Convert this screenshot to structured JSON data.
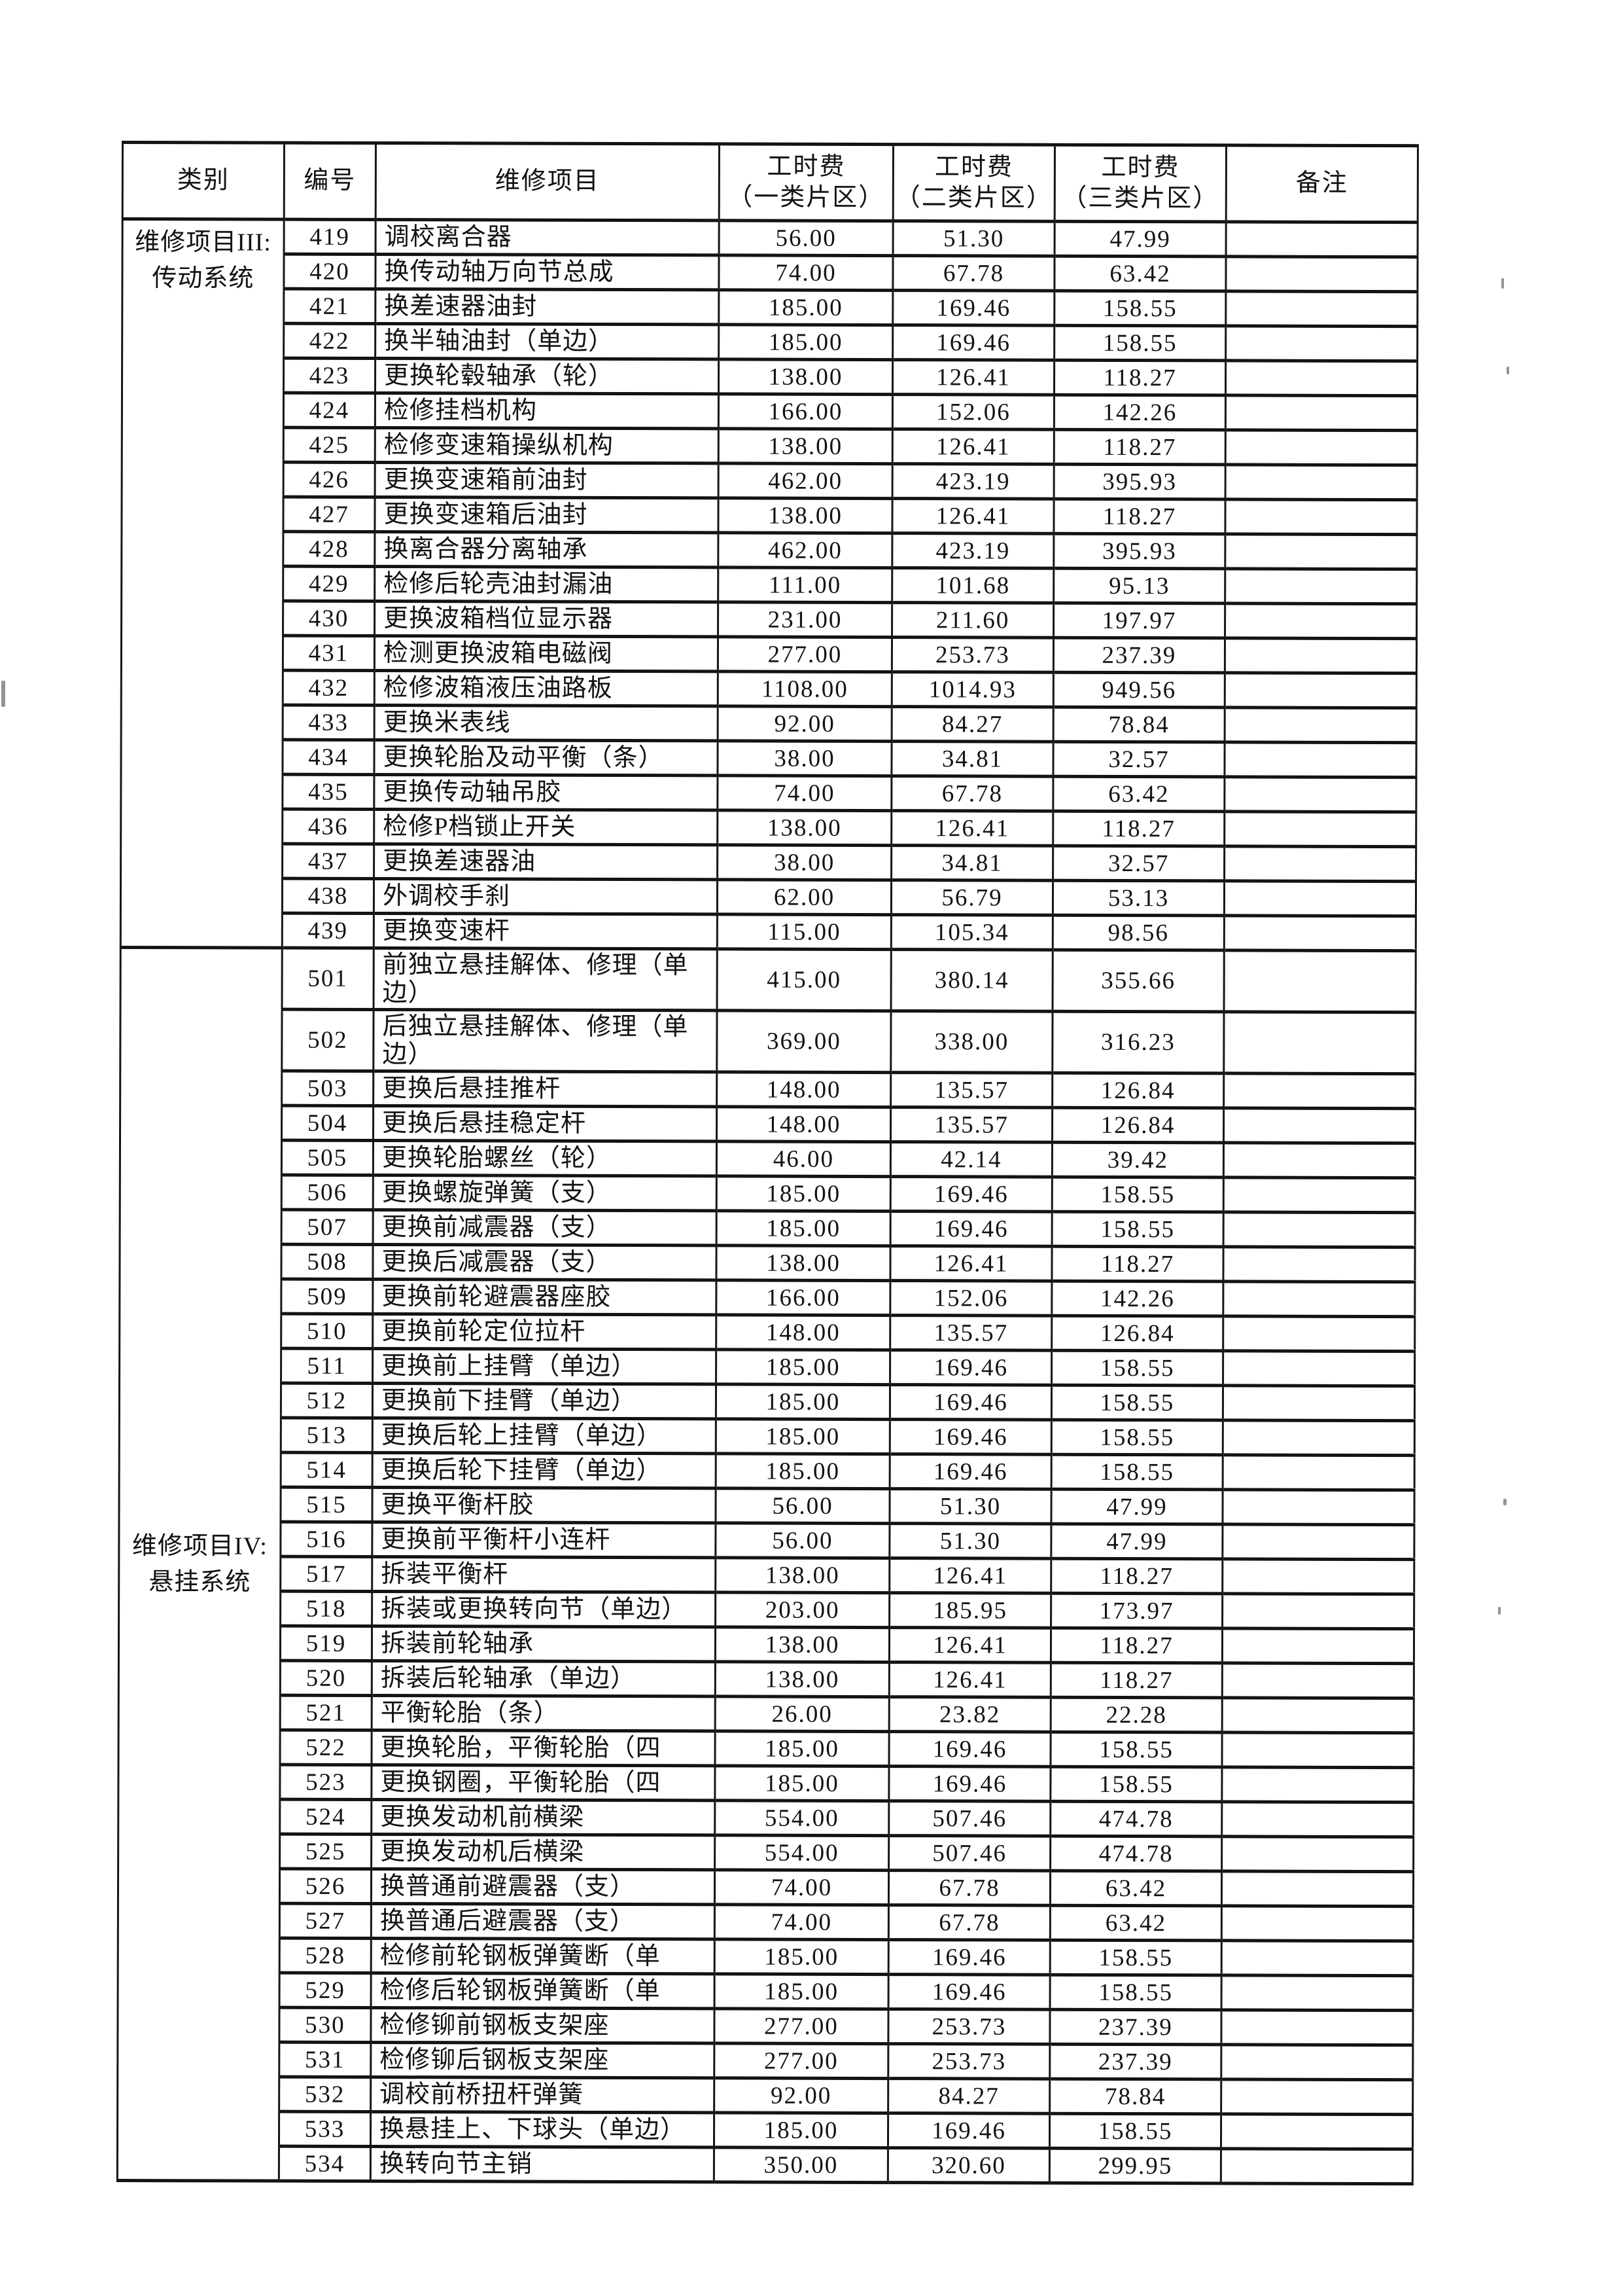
{
  "table": {
    "header": {
      "category": "类别",
      "number": "编号",
      "item": "维修项目",
      "fee1_line1": "工时费",
      "fee1_line2": "（一类片区）",
      "fee2_line1": "工时费",
      "fee2_line2": "（二类片区）",
      "fee3_line1": "工时费",
      "fee3_line2": "（三类片区）",
      "remark": "备注"
    },
    "ink_color": "#121212",
    "paper_color": "#ffffff",
    "groups": [
      {
        "category_lines": [
          "维修项目III:",
          "传动系统"
        ],
        "category_valign": "top",
        "rows": [
          {
            "no": "419",
            "item": "调校离合器",
            "fee1": "56.00",
            "fee2": "51.30",
            "fee3": "47.99"
          },
          {
            "no": "420",
            "item": "换传动轴万向节总成",
            "fee1": "74.00",
            "fee2": "67.78",
            "fee3": "63.42"
          },
          {
            "no": "421",
            "item": "换差速器油封",
            "fee1": "185.00",
            "fee2": "169.46",
            "fee3": "158.55"
          },
          {
            "no": "422",
            "item": "换半轴油封（单边）",
            "fee1": "185.00",
            "fee2": "169.46",
            "fee3": "158.55"
          },
          {
            "no": "423",
            "item": "更换轮毂轴承（轮）",
            "fee1": "138.00",
            "fee2": "126.41",
            "fee3": "118.27"
          },
          {
            "no": "424",
            "item": "检修挂档机构",
            "fee1": "166.00",
            "fee2": "152.06",
            "fee3": "142.26"
          },
          {
            "no": "425",
            "item": "检修变速箱操纵机构",
            "fee1": "138.00",
            "fee2": "126.41",
            "fee3": "118.27"
          },
          {
            "no": "426",
            "item": "更换变速箱前油封",
            "fee1": "462.00",
            "fee2": "423.19",
            "fee3": "395.93"
          },
          {
            "no": "427",
            "item": "更换变速箱后油封",
            "fee1": "138.00",
            "fee2": "126.41",
            "fee3": "118.27"
          },
          {
            "no": "428",
            "item": "换离合器分离轴承",
            "fee1": "462.00",
            "fee2": "423.19",
            "fee3": "395.93"
          },
          {
            "no": "429",
            "item": "检修后轮壳油封漏油",
            "fee1": "111.00",
            "fee2": "101.68",
            "fee3": "95.13"
          },
          {
            "no": "430",
            "item": "更换波箱档位显示器",
            "fee1": "231.00",
            "fee2": "211.60",
            "fee3": "197.97"
          },
          {
            "no": "431",
            "item": "检测更换波箱电磁阀",
            "fee1": "277.00",
            "fee2": "253.73",
            "fee3": "237.39"
          },
          {
            "no": "432",
            "item": "检修波箱液压油路板",
            "fee1": "1108.00",
            "fee2": "1014.93",
            "fee3": "949.56"
          },
          {
            "no": "433",
            "item": "更换米表线",
            "fee1": "92.00",
            "fee2": "84.27",
            "fee3": "78.84"
          },
          {
            "no": "434",
            "item": "更换轮胎及动平衡（条）",
            "fee1": "38.00",
            "fee2": "34.81",
            "fee3": "32.57"
          },
          {
            "no": "435",
            "item": "更换传动轴吊胶",
            "fee1": "74.00",
            "fee2": "67.78",
            "fee3": "63.42"
          },
          {
            "no": "436",
            "item": "检修P档锁止开关",
            "fee1": "138.00",
            "fee2": "126.41",
            "fee3": "118.27"
          },
          {
            "no": "437",
            "item": "更换差速器油",
            "fee1": "38.00",
            "fee2": "34.81",
            "fee3": "32.57"
          },
          {
            "no": "438",
            "item": "外调校手刹",
            "fee1": "62.00",
            "fee2": "56.79",
            "fee3": "53.13"
          },
          {
            "no": "439",
            "item": "更换变速杆",
            "fee1": "115.00",
            "fee2": "105.34",
            "fee3": "98.56"
          }
        ]
      },
      {
        "category_lines": [
          "维修项目IV:",
          "悬挂系统"
        ],
        "category_valign": "middle",
        "rows": [
          {
            "no": "501",
            "item": "前独立悬挂解体、修理（单\n边）",
            "fee1": "415.00",
            "fee2": "380.14",
            "fee3": "355.66",
            "tall": true
          },
          {
            "no": "502",
            "item": "后独立悬挂解体、修理（单\n边）",
            "fee1": "369.00",
            "fee2": "338.00",
            "fee3": "316.23",
            "tall": true
          },
          {
            "no": "503",
            "item": "更换后悬挂推杆",
            "fee1": "148.00",
            "fee2": "135.57",
            "fee3": "126.84"
          },
          {
            "no": "504",
            "item": "更换后悬挂稳定杆",
            "fee1": "148.00",
            "fee2": "135.57",
            "fee3": "126.84"
          },
          {
            "no": "505",
            "item": "更换轮胎螺丝（轮）",
            "fee1": "46.00",
            "fee2": "42.14",
            "fee3": "39.42"
          },
          {
            "no": "506",
            "item": "更换螺旋弹簧（支）",
            "fee1": "185.00",
            "fee2": "169.46",
            "fee3": "158.55"
          },
          {
            "no": "507",
            "item": "更换前减震器（支）",
            "fee1": "185.00",
            "fee2": "169.46",
            "fee3": "158.55"
          },
          {
            "no": "508",
            "item": "更换后减震器（支）",
            "fee1": "138.00",
            "fee2": "126.41",
            "fee3": "118.27"
          },
          {
            "no": "509",
            "item": "更换前轮避震器座胶",
            "fee1": "166.00",
            "fee2": "152.06",
            "fee3": "142.26"
          },
          {
            "no": "510",
            "item": "更换前轮定位拉杆",
            "fee1": "148.00",
            "fee2": "135.57",
            "fee3": "126.84"
          },
          {
            "no": "511",
            "item": "更换前上挂臂（单边）",
            "fee1": "185.00",
            "fee2": "169.46",
            "fee3": "158.55"
          },
          {
            "no": "512",
            "item": "更换前下挂臂（单边）",
            "fee1": "185.00",
            "fee2": "169.46",
            "fee3": "158.55"
          },
          {
            "no": "513",
            "item": "更换后轮上挂臂（单边）",
            "fee1": "185.00",
            "fee2": "169.46",
            "fee3": "158.55"
          },
          {
            "no": "514",
            "item": "更换后轮下挂臂（单边）",
            "fee1": "185.00",
            "fee2": "169.46",
            "fee3": "158.55"
          },
          {
            "no": "515",
            "item": "更换平衡杆胶",
            "fee1": "56.00",
            "fee2": "51.30",
            "fee3": "47.99"
          },
          {
            "no": "516",
            "item": "更换前平衡杆小连杆",
            "fee1": "56.00",
            "fee2": "51.30",
            "fee3": "47.99"
          },
          {
            "no": "517",
            "item": "拆装平衡杆",
            "fee1": "138.00",
            "fee2": "126.41",
            "fee3": "118.27"
          },
          {
            "no": "518",
            "item": "拆装或更换转向节（单边）",
            "fee1": "203.00",
            "fee2": "185.95",
            "fee3": "173.97"
          },
          {
            "no": "519",
            "item": "拆装前轮轴承",
            "fee1": "138.00",
            "fee2": "126.41",
            "fee3": "118.27"
          },
          {
            "no": "520",
            "item": "拆装后轮轴承（单边）",
            "fee1": "138.00",
            "fee2": "126.41",
            "fee3": "118.27"
          },
          {
            "no": "521",
            "item": "平衡轮胎（条）",
            "fee1": "26.00",
            "fee2": "23.82",
            "fee3": "22.28"
          },
          {
            "no": "522",
            "item": "更换轮胎，平衡轮胎（四",
            "fee1": "185.00",
            "fee2": "169.46",
            "fee3": "158.55"
          },
          {
            "no": "523",
            "item": "更换钢圈，平衡轮胎（四",
            "fee1": "185.00",
            "fee2": "169.46",
            "fee3": "158.55"
          },
          {
            "no": "524",
            "item": "更换发动机前横梁",
            "fee1": "554.00",
            "fee2": "507.46",
            "fee3": "474.78"
          },
          {
            "no": "525",
            "item": "更换发动机后横梁",
            "fee1": "554.00",
            "fee2": "507.46",
            "fee3": "474.78"
          },
          {
            "no": "526",
            "item": "换普通前避震器（支）",
            "fee1": "74.00",
            "fee2": "67.78",
            "fee3": "63.42"
          },
          {
            "no": "527",
            "item": "换普通后避震器（支）",
            "fee1": "74.00",
            "fee2": "67.78",
            "fee3": "63.42"
          },
          {
            "no": "528",
            "item": "检修前轮钢板弹簧断（单",
            "fee1": "185.00",
            "fee2": "169.46",
            "fee3": "158.55"
          },
          {
            "no": "529",
            "item": "检修后轮钢板弹簧断（单",
            "fee1": "185.00",
            "fee2": "169.46",
            "fee3": "158.55"
          },
          {
            "no": "530",
            "item": "检修铆前钢板支架座",
            "fee1": "277.00",
            "fee2": "253.73",
            "fee3": "237.39"
          },
          {
            "no": "531",
            "item": "检修铆后钢板支架座",
            "fee1": "277.00",
            "fee2": "253.73",
            "fee3": "237.39"
          },
          {
            "no": "532",
            "item": "调校前桥扭杆弹簧",
            "fee1": "92.00",
            "fee2": "84.27",
            "fee3": "78.84"
          },
          {
            "no": "533",
            "item": "换悬挂上、下球头（单边）",
            "fee1": "185.00",
            "fee2": "169.46",
            "fee3": "158.55"
          },
          {
            "no": "534",
            "item": "换转向节主销",
            "fee1": "350.00",
            "fee2": "320.60",
            "fee3": "299.95"
          }
        ]
      }
    ]
  }
}
